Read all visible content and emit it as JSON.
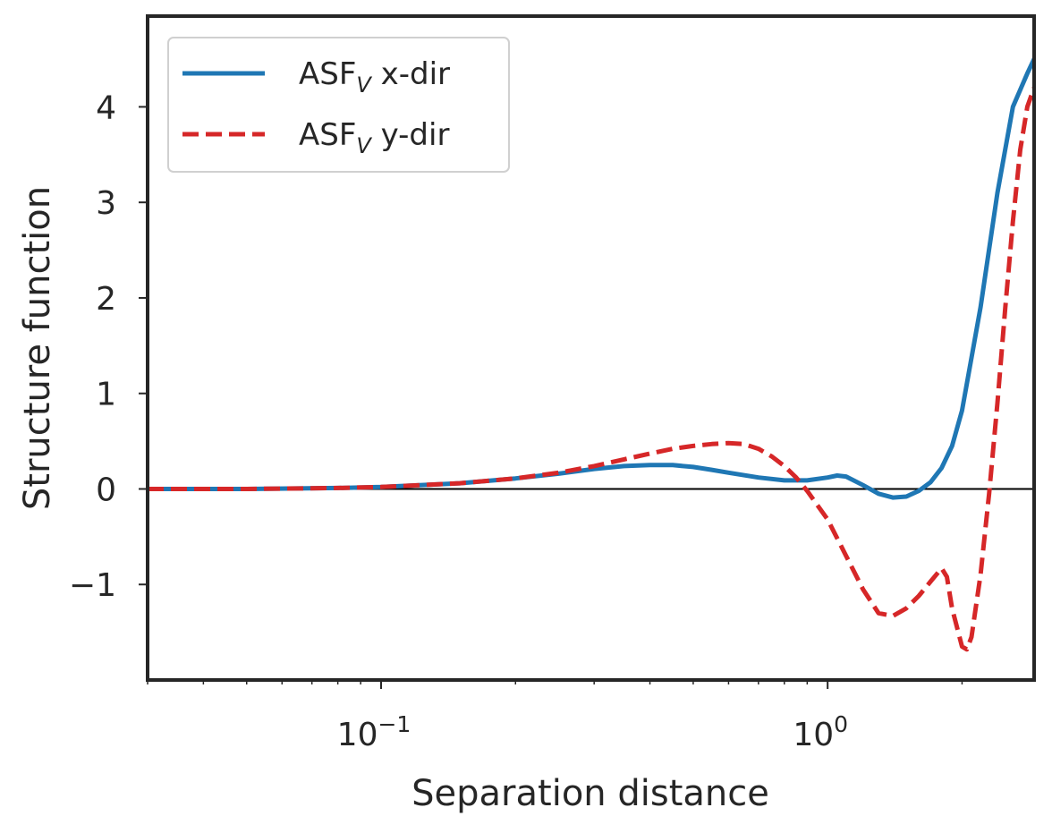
{
  "chart_data": {
    "type": "line",
    "title": "",
    "xlabel": "Separation distance",
    "ylabel": "Structure function",
    "xscale": "log",
    "xlim": [
      0.03,
      2.9
    ],
    "ylim": [
      -2.0,
      4.95
    ],
    "x_ticks": [
      {
        "value": 0.1,
        "base": "10",
        "exponent": "−1"
      },
      {
        "value": 1.0,
        "base": "10",
        "exponent": "0"
      }
    ],
    "y_ticks": [
      {
        "value": -1,
        "label": "−1"
      },
      {
        "value": 0,
        "label": "0"
      },
      {
        "value": 1,
        "label": "1"
      },
      {
        "value": 2,
        "label": "2"
      },
      {
        "value": 3,
        "label": "3"
      },
      {
        "value": 4,
        "label": "4"
      }
    ],
    "grid": false,
    "legend": "top-left",
    "reference_line_y": 0,
    "series": [
      {
        "name": "ASF",
        "subscript": "V",
        "suffix": " x-dir",
        "color": "#1f77b4",
        "dash": "solid",
        "x": [
          0.03,
          0.05,
          0.08,
          0.1,
          0.15,
          0.2,
          0.25,
          0.3,
          0.35,
          0.4,
          0.45,
          0.5,
          0.55,
          0.6,
          0.7,
          0.8,
          0.9,
          1.0,
          1.05,
          1.1,
          1.2,
          1.3,
          1.4,
          1.5,
          1.6,
          1.7,
          1.8,
          1.9,
          2.0,
          2.2,
          2.4,
          2.6,
          2.8,
          2.9
        ],
        "y": [
          0.0,
          0.0,
          0.01,
          0.02,
          0.06,
          0.11,
          0.16,
          0.21,
          0.24,
          0.25,
          0.25,
          0.23,
          0.2,
          0.17,
          0.12,
          0.09,
          0.09,
          0.12,
          0.14,
          0.13,
          0.04,
          -0.05,
          -0.09,
          -0.08,
          -0.02,
          0.07,
          0.22,
          0.45,
          0.82,
          1.9,
          3.1,
          4.0,
          4.35,
          4.5
        ]
      },
      {
        "name": "ASF",
        "subscript": "V",
        "suffix": " y-dir",
        "color": "#d62728",
        "dash": "dashed",
        "x": [
          0.03,
          0.05,
          0.08,
          0.1,
          0.15,
          0.2,
          0.25,
          0.3,
          0.35,
          0.4,
          0.45,
          0.5,
          0.55,
          0.6,
          0.65,
          0.7,
          0.75,
          0.8,
          0.85,
          0.9,
          1.0,
          1.1,
          1.2,
          1.3,
          1.4,
          1.5,
          1.6,
          1.7,
          1.8,
          1.85,
          1.9,
          2.0,
          2.05,
          2.1,
          2.2,
          2.3,
          2.4,
          2.5,
          2.6,
          2.7,
          2.8,
          2.9
        ],
        "y": [
          0.0,
          0.0,
          0.01,
          0.02,
          0.06,
          0.11,
          0.17,
          0.24,
          0.31,
          0.37,
          0.42,
          0.45,
          0.47,
          0.48,
          0.47,
          0.42,
          0.34,
          0.24,
          0.12,
          -0.02,
          -0.32,
          -0.7,
          -1.05,
          -1.3,
          -1.33,
          -1.25,
          -1.12,
          -0.97,
          -0.83,
          -0.92,
          -1.25,
          -1.65,
          -1.68,
          -1.55,
          -0.9,
          -0.05,
          0.9,
          1.9,
          2.8,
          3.55,
          4.0,
          4.2
        ]
      }
    ]
  }
}
